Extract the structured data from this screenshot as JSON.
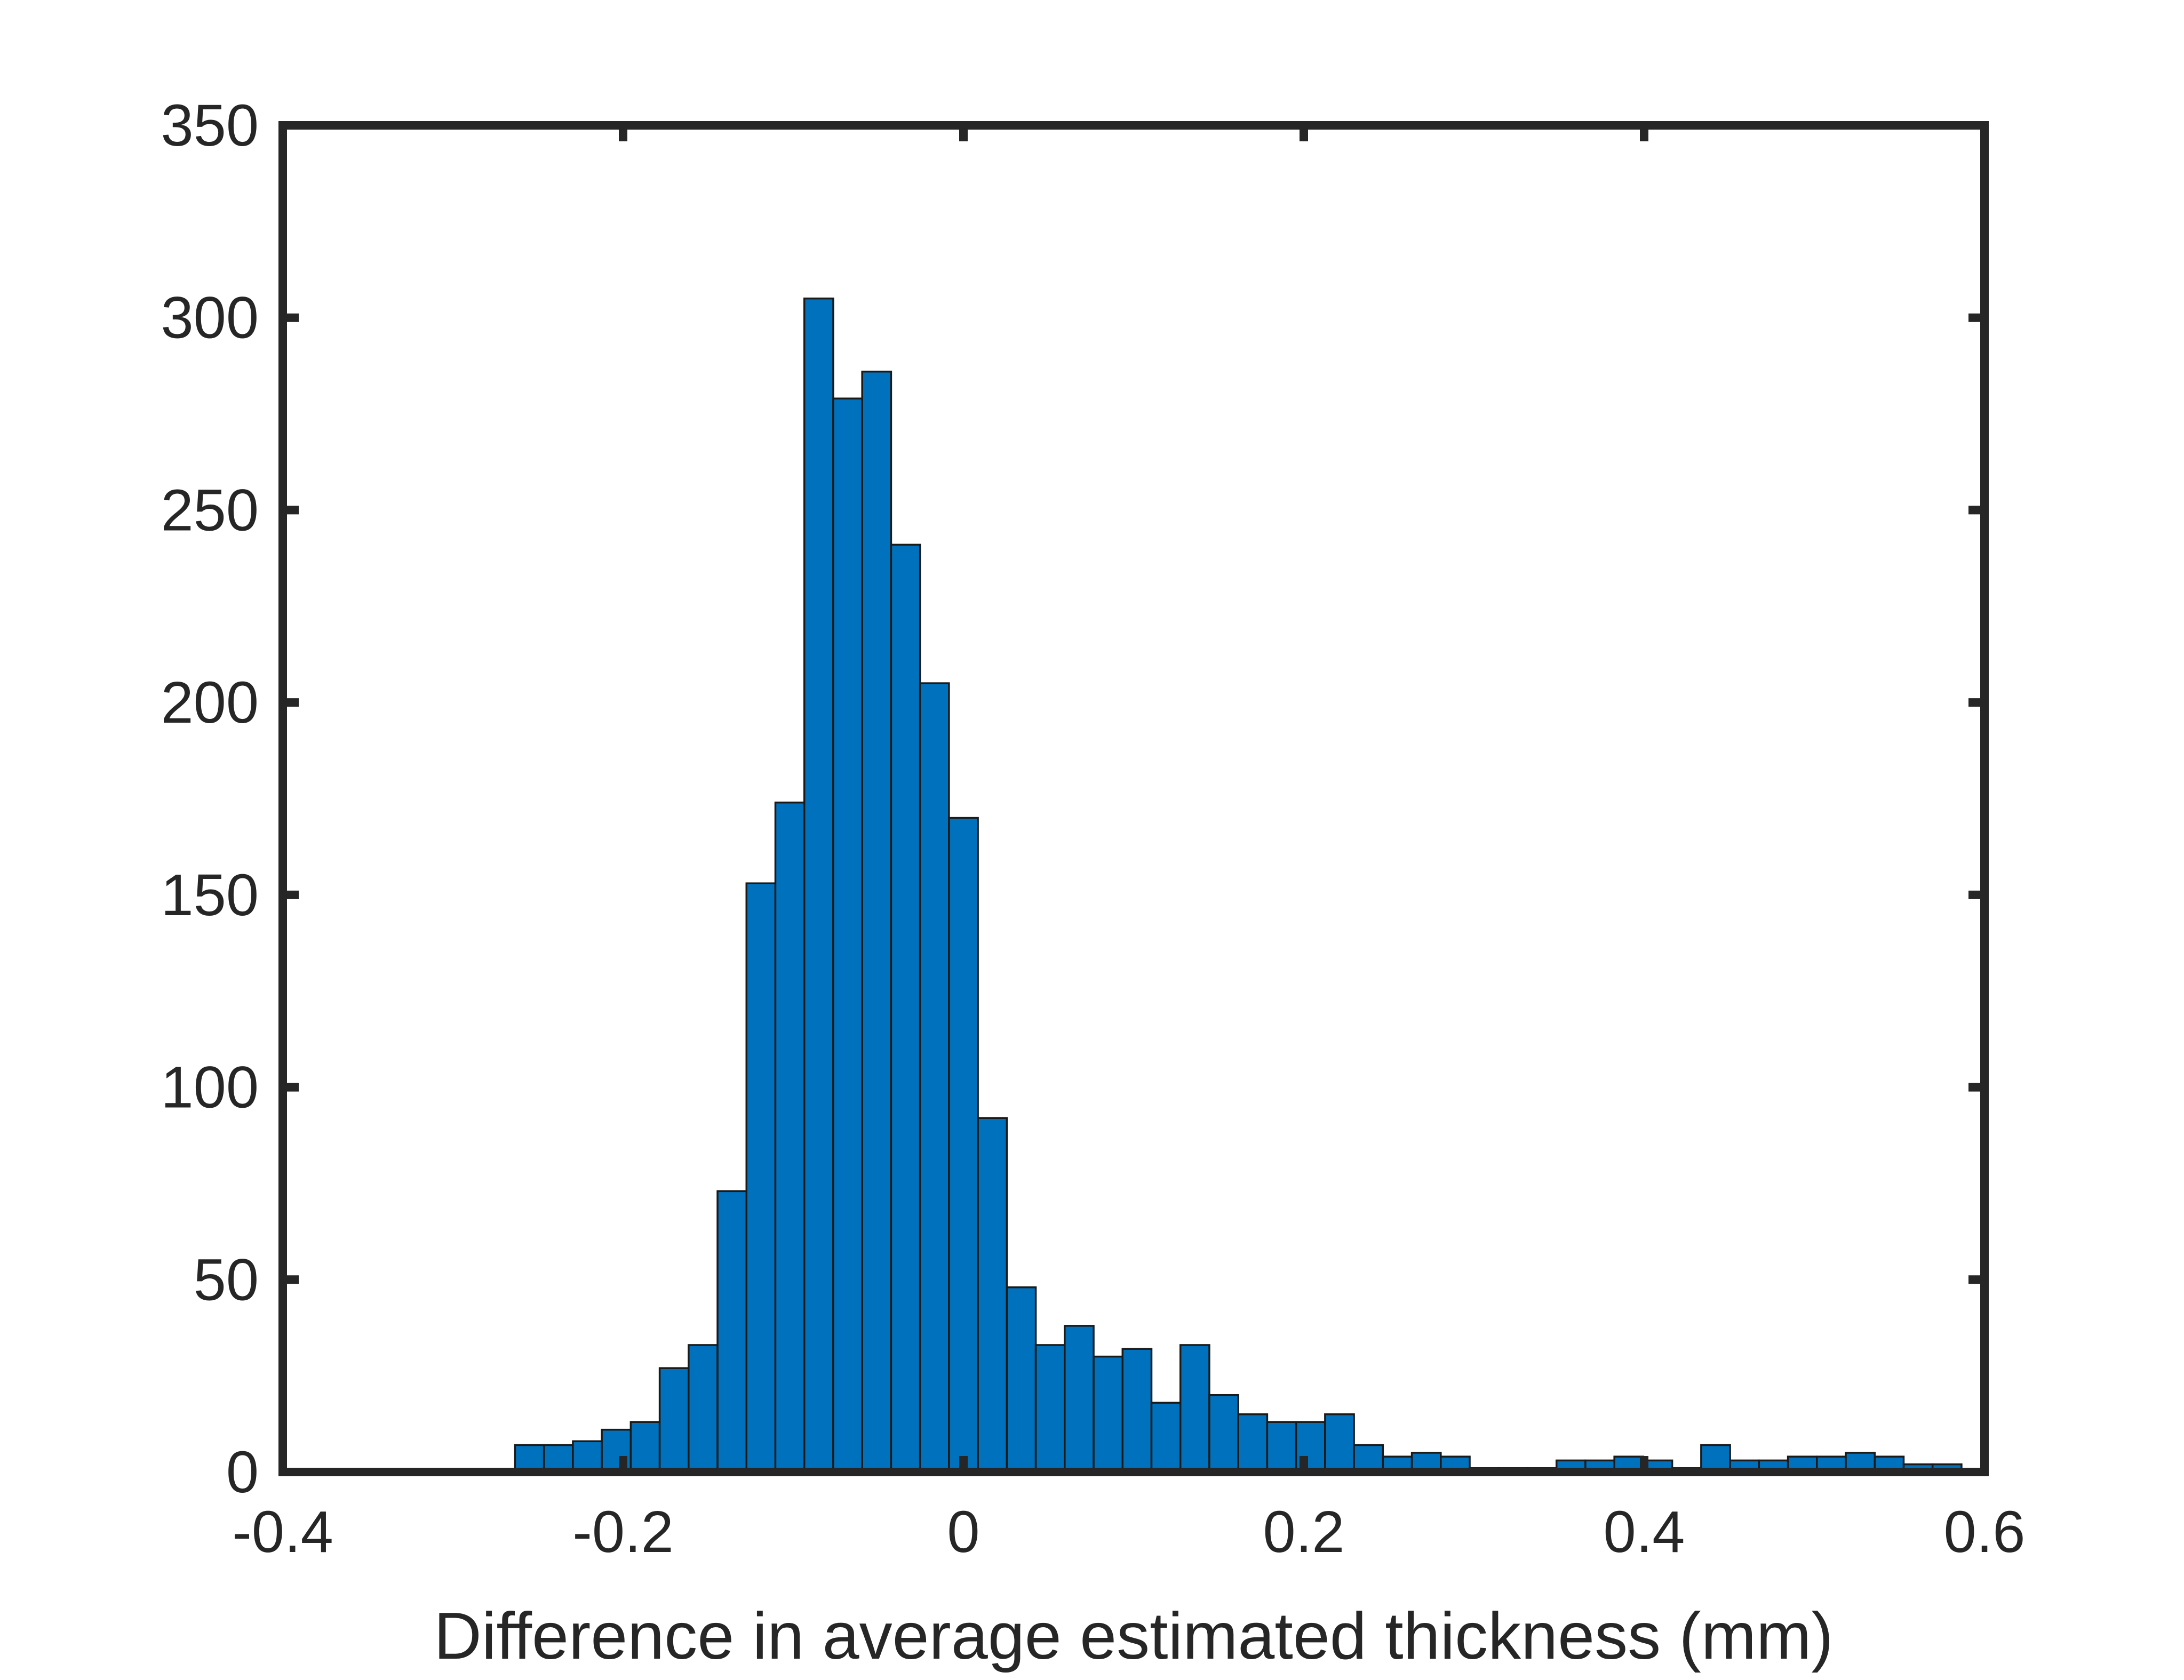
{
  "chart_data": {
    "type": "bar",
    "subtype": "histogram",
    "title": "",
    "xlabel": "Difference in average estimated thickness (mm)",
    "ylabel": "",
    "xlim": [
      -0.4,
      0.6
    ],
    "ylim": [
      0,
      350
    ],
    "xticks": [
      -0.4,
      -0.2,
      0,
      0.2,
      0.4,
      0.6
    ],
    "xtick_labels": [
      "-0.4",
      "-0.2",
      "0",
      "0.2",
      "0.4",
      "0.6"
    ],
    "yticks": [
      0,
      50,
      100,
      150,
      200,
      250,
      300,
      350
    ],
    "ytick_labels": [
      "0",
      "50",
      "100",
      "150",
      "200",
      "250",
      "300",
      "350"
    ],
    "bin_start": -0.2635,
    "bin_width": 0.017,
    "values": [
      7,
      7,
      8,
      11,
      13,
      27,
      33,
      73,
      153,
      174,
      305,
      279,
      286,
      241,
      205,
      170,
      92,
      48,
      33,
      38,
      30,
      32,
      18,
      33,
      20,
      15,
      13,
      13,
      15,
      7,
      4,
      5,
      4,
      1,
      1,
      1,
      3,
      3,
      4,
      3,
      1,
      7,
      3,
      3,
      4,
      4,
      5,
      4,
      2,
      2
    ],
    "colors": {
      "bar_fill": "#0072BD",
      "bar_edge": "#1a1a1a",
      "axes": "#262626"
    }
  }
}
